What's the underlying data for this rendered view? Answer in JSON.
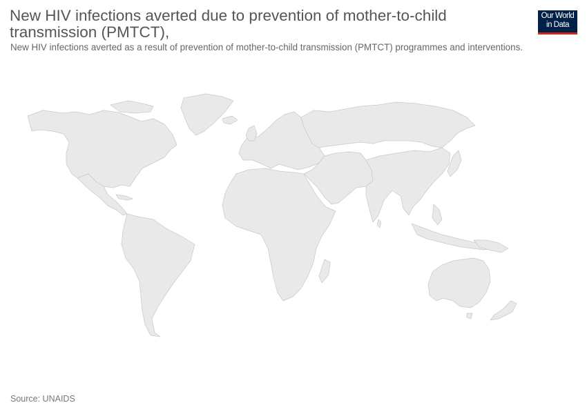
{
  "header": {
    "title": "New HIV infections averted due to prevention of mother-to-child transmission (PMTCT),",
    "subtitle": "New HIV infections averted as a result of prevention of mother-to-child transmission (PMTCT) programmes and interventions."
  },
  "logo": {
    "line1": "Our World",
    "line2": "in Data",
    "background_color": "#002147",
    "accent_color": "#ce261e"
  },
  "map": {
    "fill_color": "#e9e9e9",
    "border_color": "#c8c8c8",
    "data_shown": false
  },
  "footer": {
    "source": "Source: UNAIDS"
  }
}
